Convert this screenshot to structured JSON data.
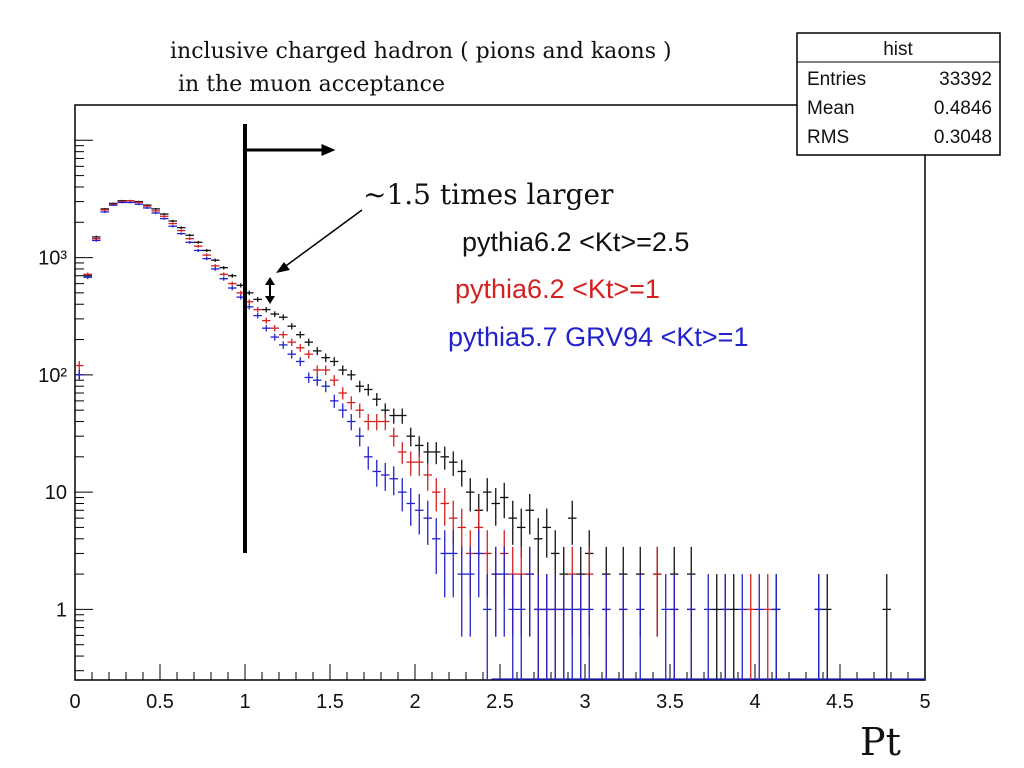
{
  "chart_data": {
    "type": "scatter",
    "title_lines": [
      "inclusive charged hadron ( pions and kaons )",
      "in the muon acceptance"
    ],
    "xlabel": "Pt",
    "ylabel": "",
    "xlim": [
      0,
      5
    ],
    "ylim": [
      0.25,
      20000
    ],
    "log_y": true,
    "bin_width": 0.05,
    "x_ticks": [
      "0",
      "0.5",
      "1",
      "1.5",
      "2",
      "2.5",
      "3",
      "3.5",
      "4",
      "4.5",
      "5"
    ],
    "y_ticks": [
      {
        "value": 1,
        "label": "1"
      },
      {
        "value": 10,
        "label": "10"
      },
      {
        "value": 100,
        "label": "10²"
      },
      {
        "value": 1000,
        "label": "10³"
      }
    ],
    "stats_box": {
      "title": "hist",
      "rows": [
        {
          "label": "Entries",
          "value": "33392"
        },
        {
          "label": "Mean",
          "value": "0.4846"
        },
        {
          "label": "RMS",
          "value": "0.3048"
        }
      ]
    },
    "annotations": {
      "ratio_text": "~1.5 times larger",
      "cut_x": 1.0
    },
    "series": [
      {
        "name": "pythia6.2 <Kt>=2.5",
        "color": "#111111",
        "x": [
          0.025,
          0.075,
          0.125,
          0.175,
          0.225,
          0.275,
          0.325,
          0.375,
          0.425,
          0.475,
          0.525,
          0.575,
          0.625,
          0.675,
          0.725,
          0.775,
          0.825,
          0.875,
          0.925,
          0.975,
          1.025,
          1.075,
          1.125,
          1.175,
          1.225,
          1.275,
          1.325,
          1.375,
          1.425,
          1.475,
          1.525,
          1.575,
          1.625,
          1.675,
          1.725,
          1.775,
          1.825,
          1.875,
          1.925,
          1.975,
          2.025,
          2.075,
          2.125,
          2.175,
          2.225,
          2.275,
          2.325,
          2.375,
          2.425,
          2.475,
          2.525,
          2.575,
          2.625,
          2.675,
          2.725,
          2.775,
          2.825,
          2.875,
          2.925,
          2.975,
          3.025,
          3.125,
          3.225,
          3.325,
          3.425,
          3.525,
          3.625,
          3.775,
          3.875,
          4.125,
          4.375,
          4.425,
          4.775
        ],
        "y": [
          100,
          700,
          1500,
          2600,
          2900,
          3050,
          3050,
          3000,
          2800,
          2600,
          2350,
          2050,
          1800,
          1550,
          1350,
          1150,
          950,
          820,
          700,
          580,
          500,
          440,
          360,
          330,
          310,
          260,
          220,
          190,
          160,
          140,
          130,
          110,
          100,
          80,
          75,
          62,
          50,
          45,
          45,
          30,
          25,
          22,
          22,
          20,
          18,
          15,
          10,
          7,
          10,
          8,
          9,
          6,
          5,
          7,
          4,
          5,
          3,
          2,
          6,
          2,
          3,
          2,
          2,
          2,
          2,
          2,
          2,
          1,
          1,
          1,
          1,
          1,
          1
        ]
      },
      {
        "name": "pythia6.2 <Kt>=1",
        "color": "#d42020",
        "x": [
          0.025,
          0.075,
          0.125,
          0.175,
          0.225,
          0.275,
          0.325,
          0.375,
          0.425,
          0.475,
          0.525,
          0.575,
          0.625,
          0.675,
          0.725,
          0.775,
          0.825,
          0.875,
          0.925,
          0.975,
          1.025,
          1.075,
          1.125,
          1.175,
          1.225,
          1.275,
          1.325,
          1.375,
          1.425,
          1.475,
          1.525,
          1.575,
          1.625,
          1.675,
          1.725,
          1.775,
          1.825,
          1.875,
          1.925,
          1.975,
          2.025,
          2.075,
          2.125,
          2.175,
          2.225,
          2.275,
          2.325,
          2.375,
          2.425,
          2.475,
          2.525,
          2.575,
          2.625,
          2.675,
          2.725,
          2.775,
          2.825,
          2.875,
          2.925,
          2.975,
          3.025,
          3.125,
          3.225,
          3.425,
          3.525,
          3.625,
          3.825,
          3.975,
          4.075
        ],
        "y": [
          120,
          720,
          1450,
          2550,
          2850,
          3000,
          3050,
          2950,
          2750,
          2500,
          2250,
          1950,
          1700,
          1450,
          1250,
          1050,
          850,
          720,
          600,
          500,
          420,
          360,
          290,
          250,
          220,
          190,
          170,
          150,
          110,
          110,
          90,
          70,
          58,
          50,
          40,
          40,
          40,
          30,
          22,
          18,
          18,
          14,
          10,
          8,
          6,
          5,
          3,
          5,
          3,
          2,
          3,
          2,
          2,
          2,
          1,
          1,
          1,
          1,
          2,
          1,
          2,
          1,
          1,
          2,
          1,
          1,
          1,
          1,
          1
        ]
      },
      {
        "name": "pythia5.7 GRV94 <Kt>=1",
        "color": "#2222cc",
        "x": [
          0.025,
          0.075,
          0.125,
          0.175,
          0.225,
          0.275,
          0.325,
          0.375,
          0.425,
          0.475,
          0.525,
          0.575,
          0.625,
          0.675,
          0.725,
          0.775,
          0.825,
          0.875,
          0.925,
          0.975,
          1.025,
          1.075,
          1.125,
          1.175,
          1.225,
          1.275,
          1.325,
          1.375,
          1.425,
          1.475,
          1.525,
          1.575,
          1.625,
          1.675,
          1.725,
          1.775,
          1.825,
          1.875,
          1.925,
          1.975,
          2.025,
          2.075,
          2.125,
          2.175,
          2.225,
          2.275,
          2.325,
          2.375,
          2.425,
          2.475,
          2.525,
          2.575,
          2.625,
          2.675,
          2.725,
          2.775,
          2.825,
          2.875,
          2.925,
          2.975,
          3.025,
          3.125,
          3.225,
          3.325,
          3.475,
          3.525,
          3.625,
          3.725,
          3.825,
          3.925,
          4.025,
          4.125,
          4.375
        ],
        "y": [
          100,
          680,
          1400,
          2450,
          2800,
          2950,
          2950,
          2850,
          2650,
          2400,
          2150,
          1850,
          1600,
          1350,
          1150,
          980,
          800,
          660,
          550,
          460,
          380,
          320,
          250,
          210,
          180,
          150,
          130,
          95,
          90,
          80,
          60,
          50,
          40,
          30,
          20,
          15,
          14,
          13,
          10,
          8,
          7,
          6,
          4,
          3,
          3,
          2,
          2,
          3,
          1,
          2,
          2,
          1,
          1,
          2,
          1,
          1,
          1,
          1,
          1,
          1,
          1,
          1,
          1,
          1,
          1,
          1,
          1,
          1,
          1,
          1,
          1,
          1,
          1
        ]
      }
    ]
  }
}
